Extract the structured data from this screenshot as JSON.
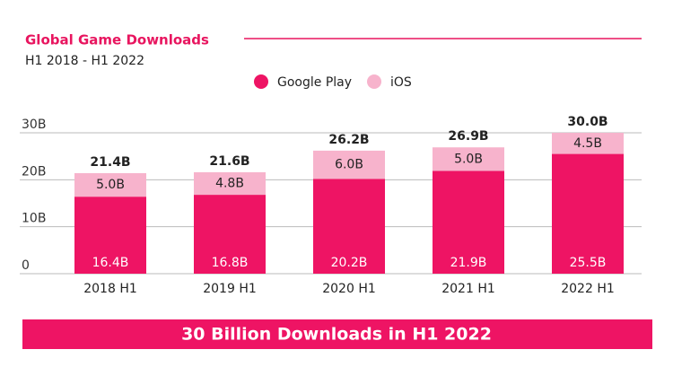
{
  "chart_data": {
    "type": "stacked_bar",
    "title": "Global Game Downloads",
    "subtitle": "H1 2018 - H1 2022",
    "categories": [
      "2018 H1",
      "2019 H1",
      "2020 H1",
      "2021 H1",
      "2022 H1"
    ],
    "series": [
      {
        "name": "Google Play",
        "color": "#ee1464",
        "values": [
          16.4,
          16.8,
          20.2,
          21.9,
          25.5
        ],
        "value_labels": [
          "16.4B",
          "16.8B",
          "20.2B",
          "21.9B",
          "25.5B"
        ]
      },
      {
        "name": "iOS",
        "color": "#f7b3cc",
        "values": [
          5.0,
          4.8,
          6.0,
          5.0,
          4.5
        ],
        "value_labels": [
          "5.0B",
          "4.8B",
          "6.0B",
          "5.0B",
          "4.5B"
        ]
      }
    ],
    "totals": {
      "values": [
        21.4,
        21.6,
        26.2,
        26.9,
        30.0
      ],
      "value_labels": [
        "21.4B",
        "21.6B",
        "26.2B",
        "26.9B",
        "30.0B"
      ]
    },
    "ylim": [
      0,
      30
    ],
    "yticks": [
      0,
      {
        "value": 10,
        "label": "10B"
      },
      {
        "value": 20,
        "label": "20B"
      },
      {
        "value": 30,
        "label": "30B"
      }
    ],
    "grid": true,
    "annotation": "30 Billion Downloads in H1 2022"
  }
}
